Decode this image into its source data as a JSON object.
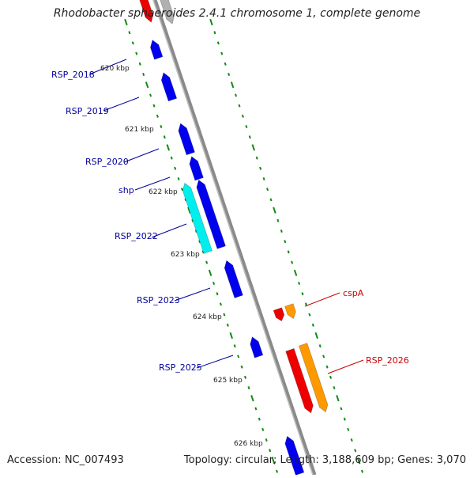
{
  "title": "Rhodobacter sphaeroides 2.4.1 chromosome 1, complete genome",
  "footer": {
    "accession": "Accession: NC_007493",
    "summary": "Topology: circular; Length: 3,188,609 bp; Genes: 3,070"
  },
  "scale_labels": [
    {
      "text": "620 kbp"
    },
    {
      "text": "621 kbp"
    },
    {
      "text": "622 kbp"
    },
    {
      "text": "623 kbp"
    },
    {
      "text": "624 kbp"
    },
    {
      "text": "625 kbp"
    },
    {
      "text": "626 kbp"
    }
  ],
  "genes": [
    {
      "id": "rsp_2018",
      "label": "RSP_2018",
      "strand": "minus",
      "color": "#0000ee"
    },
    {
      "id": "rsp_2019",
      "label": "RSP_2019",
      "strand": "minus",
      "color": "#0000ee"
    },
    {
      "id": "rsp_2020",
      "label": "RSP_2020",
      "strand": "minus",
      "color": "#0000ee"
    },
    {
      "id": "shp",
      "label": "shp",
      "strand": "minus",
      "color": "#0000ee"
    },
    {
      "id": "rsp_2022",
      "label": "RSP_2022",
      "strand": "minus",
      "color": "#00eeee"
    },
    {
      "id": "rsp_2023",
      "label": "RSP_2023",
      "strand": "minus",
      "color": "#0000ee"
    },
    {
      "id": "rsp_2025",
      "label": "RSP_2025",
      "strand": "minus",
      "color": "#0000ee"
    },
    {
      "id": "cspa",
      "label": "cspA",
      "strand": "plus",
      "color": "#ee0000"
    },
    {
      "id": "rsp_2026",
      "label": "RSP_2026",
      "strand": "plus",
      "color": "#ee0000"
    }
  ],
  "colors": {
    "backbone": "#8a8a8a",
    "tick": "#138a13",
    "minus_label": "#00009c",
    "plus_label": "#cc0000",
    "cds_blue": "#0000ee",
    "cds_cyan": "#00eeee",
    "cds_red": "#ee0000",
    "cds_orange": "#ff9900"
  }
}
